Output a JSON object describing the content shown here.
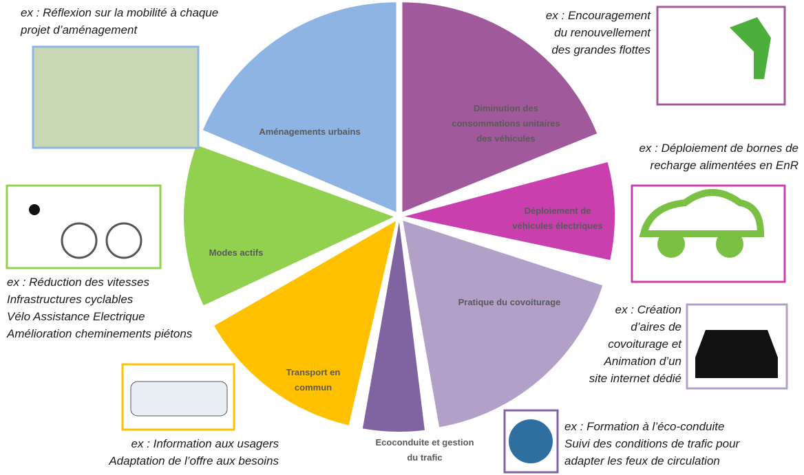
{
  "segments": [
    {
      "label": [
        "Aménagements urbains"
      ],
      "example": [
        "ex : Réflexion sur la mobilité à chaque",
        "projet d’aménagement"
      ]
    },
    {
      "label": [
        "Diminution des",
        "consommations unitaires",
        "des véhicules"
      ],
      "example": [
        "ex : Encouragement",
        "du renouvellement",
        "des grandes flottes"
      ]
    },
    {
      "label": [
        "Déploiement de",
        "véhicules électriques"
      ],
      "example": [
        "ex : Déploiement de bornes de",
        "recharge alimentées en EnR"
      ]
    },
    {
      "label": [
        "Pratique du covoiturage"
      ],
      "example": [
        "ex : Création",
        "d’aires de",
        "covoiturage et",
        "Animation d’un",
        "site internet dédié"
      ]
    },
    {
      "label": [
        "Ecoconduite et gestion",
        "du trafic"
      ],
      "example": [
        "ex : Formation à l’éco-conduite",
        "Suivi des conditions de trafic pour",
        "adapter les feux de circulation"
      ]
    },
    {
      "label": [
        "Transport en",
        "commun"
      ],
      "example": [
        "ex : Information aux usagers",
        "Adaptation de l’offre aux besoins"
      ]
    },
    {
      "label": [
        "Modes actifs"
      ],
      "example": [
        "ex : Réduction des vitesses",
        "Infrastructures cyclables",
        "Vélo Assistance Electrique",
        "Amélioration cheminements piétons"
      ]
    }
  ]
}
